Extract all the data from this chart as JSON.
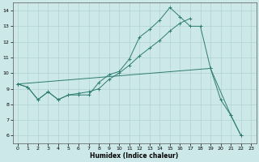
{
  "xlabel": "Humidex (Indice chaleur)",
  "xlim": [
    -0.5,
    23.5
  ],
  "ylim": [
    5.5,
    14.5
  ],
  "xticks": [
    0,
    1,
    2,
    3,
    4,
    5,
    6,
    7,
    8,
    9,
    10,
    11,
    12,
    13,
    14,
    15,
    16,
    17,
    18,
    19,
    20,
    21,
    22,
    23
  ],
  "yticks": [
    6,
    7,
    8,
    9,
    10,
    11,
    12,
    13,
    14
  ],
  "bg_color": "#cde8e8",
  "grid_color": "#aacccc",
  "line_color": "#2e7d72",
  "line1_x": [
    0,
    1,
    2,
    3,
    4,
    5,
    6,
    7,
    8,
    9,
    10,
    11,
    12,
    13,
    14,
    15,
    16,
    17,
    18,
    19,
    20,
    21,
    22
  ],
  "line1_y": [
    9.3,
    9.1,
    8.3,
    8.8,
    8.3,
    8.6,
    8.6,
    8.6,
    9.4,
    9.9,
    10.1,
    10.9,
    12.3,
    12.8,
    13.4,
    14.2,
    13.6,
    13.0,
    13.0,
    10.3,
    8.3,
    7.3,
    6.0
  ],
  "line2_x": [
    0,
    1,
    2,
    3,
    4,
    5,
    6,
    7,
    8,
    9,
    10,
    11,
    12,
    13,
    14,
    15,
    16,
    17
  ],
  "line2_y": [
    9.3,
    9.1,
    8.3,
    8.8,
    8.3,
    8.6,
    8.7,
    8.8,
    9.0,
    9.6,
    10.0,
    10.5,
    11.1,
    11.6,
    12.1,
    12.7,
    13.2,
    13.5
  ],
  "line3_x": [
    0,
    19,
    21,
    22
  ],
  "line3_y": [
    9.3,
    10.3,
    7.3,
    6.0
  ],
  "figsize": [
    3.2,
    2.0
  ],
  "dpi": 100
}
